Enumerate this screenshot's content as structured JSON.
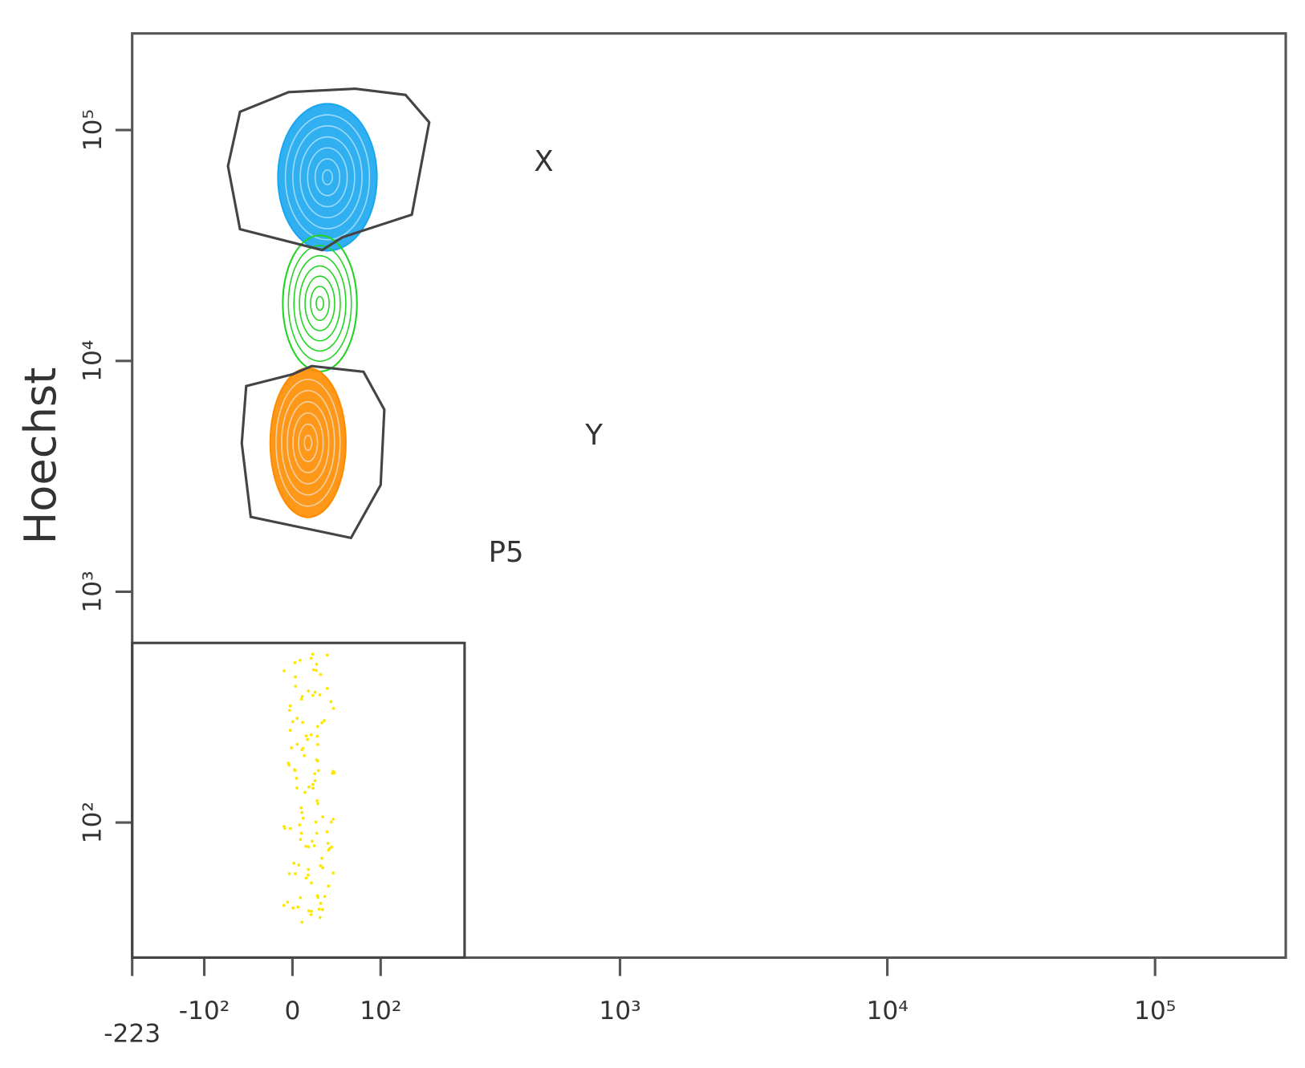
{
  "chart_data": {
    "type": "flow-contour",
    "ylabel": "Hoechst",
    "xscale": "biexponential",
    "yscale": "log",
    "xlim": [
      -223,
      262144
    ],
    "ylim": [
      26,
      262144
    ],
    "xticks": [
      {
        "value": -223,
        "label": "-223"
      },
      {
        "value": -100,
        "label": "-10²"
      },
      0,
      {
        "value": 100,
        "label": "10²"
      },
      {
        "value": 1000,
        "label": "10³"
      },
      {
        "value": 10000,
        "label": "10⁴"
      },
      {
        "value": 100000,
        "label": "10⁵"
      }
    ],
    "yticks": [
      {
        "value": 100,
        "label": "10²"
      },
      {
        "value": 1000,
        "label": "10³"
      },
      {
        "value": 10000,
        "label": "10⁴"
      },
      {
        "value": 100000,
        "label": "10⁵"
      }
    ],
    "populations": [
      {
        "color": "#1aa7f0",
        "x_range": [
          -15,
          95
        ],
        "y_range": [
          30000,
          130000
        ]
      },
      {
        "color": "#22d422",
        "x_range": [
          -10,
          70
        ],
        "y_range": [
          9000,
          35000
        ]
      },
      {
        "color": "#ff8c00",
        "x_range": [
          -23,
          57
        ],
        "y_range": [
          2100,
          9300
        ]
      },
      {
        "color": "#ffe600",
        "x_range": [
          -10,
          45
        ],
        "y_range": [
          37,
          550
        ]
      }
    ],
    "gates": [
      {
        "name": "X",
        "shape": "polygon",
        "vertices": [
          [
            -56,
            120000
          ],
          [
            -4,
            146000
          ],
          [
            68,
            151000
          ],
          [
            136,
            142000
          ],
          [
            176,
            108000
          ],
          [
            146,
            43000
          ],
          [
            53,
            34300
          ],
          [
            31,
            30200
          ],
          [
            -56,
            37200
          ],
          [
            -70,
            69800
          ]
        ]
      },
      {
        "name": "Y",
        "shape": "polygon",
        "vertices": [
          [
            -49,
            7780
          ],
          [
            0,
            8750
          ],
          [
            20,
            9500
          ],
          [
            78,
            8970
          ],
          [
            105,
            6150
          ],
          [
            100,
            2900
          ],
          [
            63,
            1710
          ],
          [
            -44,
            2110
          ],
          [
            -54,
            4400
          ]
        ]
      },
      {
        "name": "P5",
        "shape": "rectangle",
        "vertices": [
          [
            -223,
            26
          ],
          [
            250,
            600
          ]
        ]
      }
    ]
  }
}
